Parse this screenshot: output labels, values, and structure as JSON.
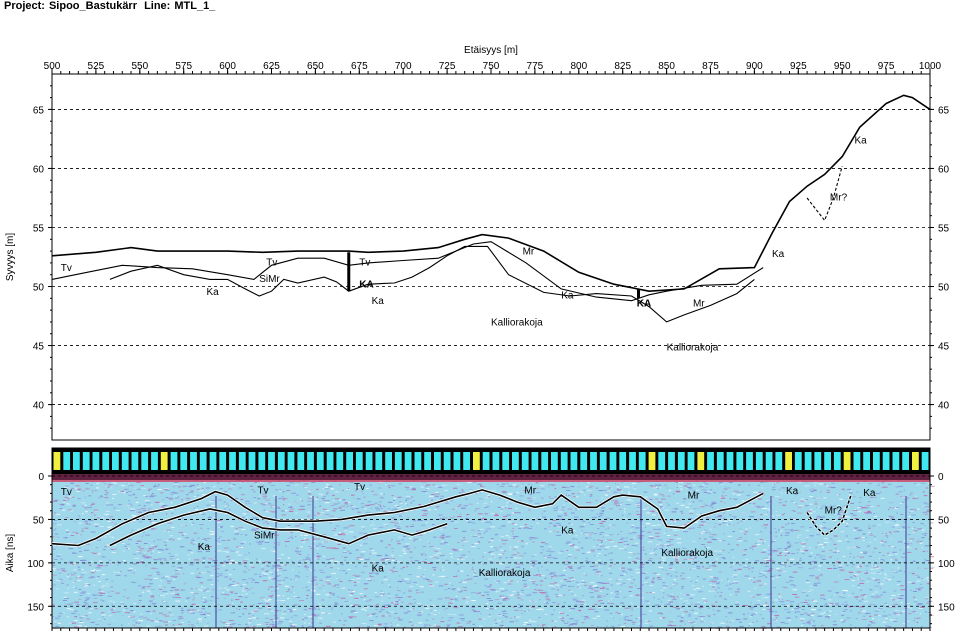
{
  "header": {
    "project_label": "Project:",
    "project_name": "Sipoo_Bastukärr",
    "line_label": "Line:",
    "line_name": "MTL_1_"
  },
  "colors": {
    "frame": "#000000",
    "grid": "#000000",
    "profile_line": "#000000",
    "radar_base": "#9fd8ea",
    "radar_noise_a": "#7f7fd6",
    "radar_noise_b": "#c05fa8",
    "marker_cyan": "#40e8f0",
    "marker_yellow": "#f0f040",
    "top_band": "#602040"
  },
  "chart_data": [
    {
      "type": "line",
      "name": "depth-profile",
      "title": "",
      "xlabel": "Etäisyys [m]",
      "ylabel": "Syvyys [m]",
      "xlim": [
        500,
        1000
      ],
      "ylim": [
        37,
        68
      ],
      "x_ticks": [
        500,
        525,
        550,
        575,
        600,
        625,
        650,
        675,
        700,
        725,
        750,
        775,
        800,
        825,
        850,
        875,
        900,
        925,
        950,
        975,
        1000
      ],
      "x_tick_labels": [
        "500",
        "525",
        "550",
        "575",
        "600",
        "625",
        "650",
        "675",
        "700",
        "725",
        "750",
        "775",
        "800",
        "825",
        "850",
        "875",
        "900",
        "925",
        "950",
        "975",
        "1000"
      ],
      "y_ticks": [
        40,
        45,
        50,
        55,
        60,
        65
      ],
      "y_tick_labels": [
        "40",
        "45",
        "50",
        "55",
        "60",
        "65"
      ],
      "grid": true,
      "series": [
        {
          "x": [
            500,
            525,
            545,
            560,
            580,
            600,
            620,
            640,
            669,
            680,
            700,
            720,
            735,
            745,
            760,
            780,
            800,
            820,
            840,
            860,
            880,
            900,
            910,
            920,
            930,
            940,
            950,
            960,
            975,
            985,
            990,
            1000
          ],
          "y": [
            52.6,
            52.9,
            53.3,
            53.0,
            53.0,
            53.0,
            52.9,
            53.0,
            53.0,
            52.9,
            53.0,
            53.3,
            54.0,
            54.4,
            54.1,
            53.0,
            51.2,
            50.2,
            49.6,
            49.8,
            51.5,
            51.6,
            54.5,
            57.2,
            58.5,
            59.5,
            61.0,
            63.5,
            65.5,
            66.2,
            66.0,
            65.0
          ]
        },
        {
          "x": [
            500,
            520,
            540,
            560,
            580,
            600,
            615,
            625,
            640,
            655,
            669,
            680,
            700,
            720,
            740,
            750,
            770,
            790,
            810,
            830,
            840,
            850,
            870,
            890,
            905
          ],
          "y": [
            50.6,
            51.2,
            51.8,
            51.6,
            51.5,
            51.0,
            50.6,
            51.8,
            52.4,
            52.4,
            51.8,
            52.0,
            52.2,
            52.4,
            53.6,
            53.8,
            52.0,
            49.8,
            49.1,
            48.8,
            49.3,
            49.6,
            50.1,
            50.2,
            51.6
          ]
        },
        {
          "x": [
            533,
            545,
            560,
            575,
            590,
            600,
            610,
            618,
            625,
            632,
            640,
            655,
            662,
            669,
            680,
            695,
            705,
            715,
            725,
            735,
            748,
            760,
            780,
            795,
            810,
            830,
            840,
            850,
            860,
            875,
            890,
            900
          ],
          "y": [
            50.6,
            51.3,
            51.8,
            51.0,
            50.6,
            50.6,
            49.8,
            49.2,
            49.6,
            50.6,
            50.3,
            50.8,
            50.4,
            49.6,
            50.2,
            50.3,
            50.8,
            51.6,
            52.6,
            53.4,
            53.4,
            51.0,
            49.5,
            49.2,
            49.4,
            49.2,
            48.3,
            47.0,
            47.6,
            48.4,
            49.4,
            50.6
          ]
        },
        {
          "x": [
            930,
            940,
            945,
            950
          ],
          "y": [
            57.5,
            55.6,
            57.5,
            60.2
          ]
        }
      ],
      "annotations": [
        {
          "text": "Tv",
          "x": 505,
          "y": 51.3
        },
        {
          "text": "Tv",
          "x": 622,
          "y": 51.8
        },
        {
          "text": "Tv",
          "x": 675,
          "y": 51.8
        },
        {
          "text": "SiMr",
          "x": 618,
          "y": 50.4
        },
        {
          "text": "KA",
          "x": 675,
          "y": 49.9
        },
        {
          "text": "KA",
          "x": 833,
          "y": 48.3
        },
        {
          "text": "Ka",
          "x": 588,
          "y": 49.3
        },
        {
          "text": "Ka",
          "x": 682,
          "y": 48.5
        },
        {
          "text": "Ka",
          "x": 790,
          "y": 49.0
        },
        {
          "text": "Ka",
          "x": 910,
          "y": 52.5
        },
        {
          "text": "Ka",
          "x": 957,
          "y": 62.1
        },
        {
          "text": "Mr",
          "x": 768,
          "y": 52.7
        },
        {
          "text": "Mr",
          "x": 865,
          "y": 48.3
        },
        {
          "text": "Mr?",
          "x": 943,
          "y": 57.3
        },
        {
          "text": "Kalliorakoja",
          "x": 750,
          "y": 46.7
        },
        {
          "text": "Kalliorakoja",
          "x": 850,
          "y": 44.6
        }
      ]
    },
    {
      "type": "heatmap",
      "name": "radargram",
      "title": "",
      "xlabel": "",
      "ylabel": "Aika [ns]",
      "xlim": [
        500,
        1000
      ],
      "ylim": [
        175,
        -5
      ],
      "y_ticks": [
        0,
        50,
        100,
        150
      ],
      "y_tick_labels": [
        "0",
        "50",
        "100",
        "150"
      ],
      "grid": true,
      "series": [
        {
          "x": [
            500,
            515,
            525,
            540,
            555,
            570,
            585,
            593,
            600,
            610,
            620,
            630,
            640,
            650,
            665,
            680,
            695,
            712,
            720,
            730,
            738,
            745,
            755,
            765,
            775,
            785,
            790,
            800,
            810,
            820,
            825,
            835,
            845,
            850,
            860,
            870,
            880,
            890,
            905
          ],
          "y": [
            78,
            80,
            72,
            55,
            42,
            36,
            26,
            18,
            22,
            36,
            48,
            52,
            52,
            52,
            50,
            45,
            42,
            35,
            30,
            24,
            20,
            16,
            22,
            30,
            36,
            32,
            22,
            36,
            36,
            24,
            22,
            24,
            38,
            58,
            60,
            46,
            40,
            36,
            20
          ]
        },
        {
          "x": [
            533,
            545,
            560,
            575,
            590,
            600,
            610,
            620,
            630,
            640,
            655,
            669,
            680,
            695,
            705,
            715,
            725
          ],
          "y": [
            80,
            68,
            55,
            45,
            38,
            42,
            52,
            60,
            62,
            62,
            70,
            78,
            68,
            62,
            68,
            62,
            55
          ]
        },
        {
          "x": [
            930,
            935,
            940,
            945,
            950,
            955
          ],
          "y": [
            42,
            58,
            68,
            62,
            52,
            22
          ]
        }
      ],
      "annotations": [
        {
          "text": "Tv",
          "x": 505,
          "y": 22
        },
        {
          "text": "Tv",
          "x": 617,
          "y": 20
        },
        {
          "text": "Tv",
          "x": 672,
          "y": 16
        },
        {
          "text": "SiMr",
          "x": 615,
          "y": 72
        },
        {
          "text": "Ka",
          "x": 583,
          "y": 85
        },
        {
          "text": "Ka",
          "x": 682,
          "y": 110
        },
        {
          "text": "Ka",
          "x": 790,
          "y": 66
        },
        {
          "text": "Ka",
          "x": 918,
          "y": 21
        },
        {
          "text": "Ka",
          "x": 962,
          "y": 23
        },
        {
          "text": "Mr",
          "x": 769,
          "y": 20
        },
        {
          "text": "Mr",
          "x": 862,
          "y": 26
        },
        {
          "text": "Mr?",
          "x": 940,
          "y": 43
        },
        {
          "text": "Kalliorakoja",
          "x": 743,
          "y": 115
        },
        {
          "text": "Kalliorakoja",
          "x": 847,
          "y": 92
        }
      ]
    }
  ]
}
